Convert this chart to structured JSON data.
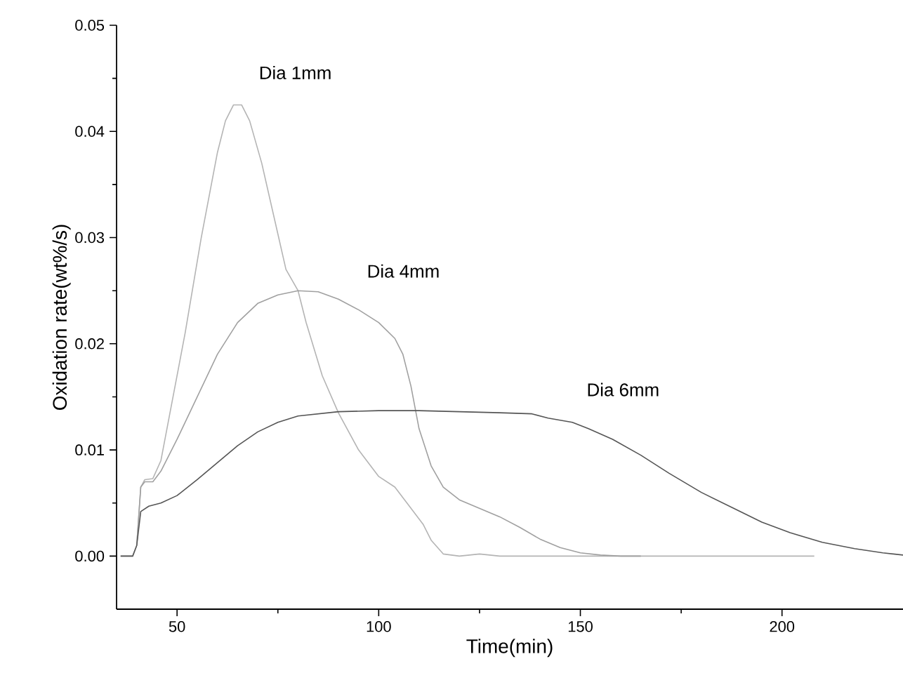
{
  "chart_data": {
    "type": "line",
    "xlabel": "Time(min)",
    "ylabel": "Oxidation rate(wt%/s)",
    "xlim": [
      35,
      230
    ],
    "xticks": [
      50,
      100,
      150,
      200
    ],
    "ylim": [
      -0.005,
      0.05
    ],
    "yticks": [
      {
        "value": 0,
        "label": "0.00"
      },
      {
        "value": 0.01,
        "label": "0.01"
      },
      {
        "value": 0.02,
        "label": "0.02"
      },
      {
        "value": 0.03,
        "label": "0.03"
      },
      {
        "value": 0.04,
        "label": "0.04"
      },
      {
        "value": 0.05,
        "label": "0.05"
      }
    ],
    "series": [
      {
        "name": "Dia 1mm",
        "color": "#b4b4b4",
        "x": [
          36,
          39,
          40,
          41,
          42,
          44,
          46,
          48,
          52,
          56,
          60,
          62,
          64,
          66,
          68,
          71,
          74,
          77,
          80,
          82,
          86,
          90,
          95,
          100,
          104,
          108,
          111,
          113,
          116,
          120,
          125,
          130,
          140,
          150,
          160,
          170,
          180,
          190,
          208
        ],
        "values": [
          0,
          0,
          0.001,
          0.0065,
          0.0072,
          0.0073,
          0.009,
          0.013,
          0.021,
          0.03,
          0.038,
          0.041,
          0.0425,
          0.0425,
          0.041,
          0.037,
          0.032,
          0.027,
          0.025,
          0.022,
          0.017,
          0.0135,
          0.01,
          0.0075,
          0.0065,
          0.0045,
          0.003,
          0.0015,
          0.0002,
          0,
          0.0002,
          0,
          0,
          0,
          0,
          0,
          0,
          0,
          0
        ]
      },
      {
        "name": "Dia 4mm",
        "color": "#a0a0a0",
        "x": [
          40,
          41,
          42,
          44,
          46,
          50,
          55,
          60,
          65,
          70,
          75,
          80,
          85,
          90,
          95,
          100,
          104,
          106,
          108,
          110,
          113,
          116,
          120,
          125,
          130,
          135,
          140,
          145,
          150,
          155,
          160,
          165
        ],
        "values": [
          0.001,
          0.0065,
          0.007,
          0.007,
          0.008,
          0.011,
          0.015,
          0.019,
          0.022,
          0.0238,
          0.0246,
          0.025,
          0.0249,
          0.0242,
          0.0232,
          0.022,
          0.0205,
          0.019,
          0.016,
          0.012,
          0.0085,
          0.0065,
          0.0053,
          0.0045,
          0.0037,
          0.0027,
          0.0016,
          0.0008,
          0.0003,
          0.0001,
          0,
          0
        ]
      },
      {
        "name": "Dia 6mm",
        "color": "#555555",
        "x": [
          36,
          39,
          40,
          41,
          43,
          46,
          50,
          55,
          60,
          65,
          70,
          75,
          80,
          90,
          100,
          110,
          120,
          130,
          138,
          142,
          148,
          152,
          158,
          165,
          172,
          180,
          188,
          195,
          202,
          210,
          218,
          225,
          230
        ],
        "values": [
          0,
          0,
          0.001,
          0.0042,
          0.0047,
          0.005,
          0.0057,
          0.0072,
          0.0088,
          0.0104,
          0.0117,
          0.0126,
          0.0132,
          0.0136,
          0.0137,
          0.0137,
          0.0136,
          0.0135,
          0.0134,
          0.013,
          0.0126,
          0.012,
          0.011,
          0.0095,
          0.0078,
          0.006,
          0.0045,
          0.0032,
          0.0022,
          0.0013,
          0.0007,
          0.0003,
          0.0001
        ]
      }
    ]
  }
}
